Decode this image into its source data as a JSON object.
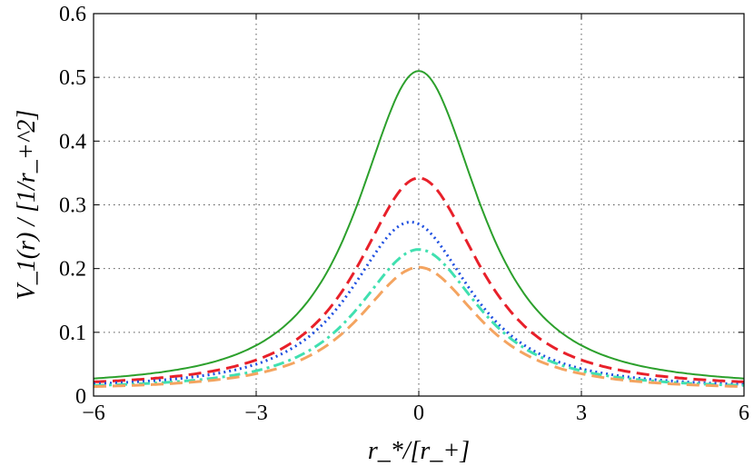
{
  "chart_data": {
    "type": "line",
    "title": "",
    "xlabel": "r_*/[r_+]",
    "ylabel": "V_1(r) / [1/r_+^2]",
    "xlim": [
      -6,
      6
    ],
    "ylim": [
      0,
      0.6
    ],
    "xticks": [
      -6,
      -3,
      0,
      3,
      6
    ],
    "xtick_labels": [
      "−6",
      "−3",
      "0",
      "3",
      "6"
    ],
    "yticks": [
      0,
      0.1,
      0.2,
      0.3,
      0.4,
      0.5,
      0.6
    ],
    "ytick_labels": [
      "0",
      "0.1",
      "0.2",
      "0.3",
      "0.4",
      "0.5",
      "0.6"
    ],
    "grid": true,
    "legend": "none",
    "series": [
      {
        "name": "solid",
        "style": "solid",
        "color": "#2ca02c",
        "peak_x": 0.0,
        "peak": 0.51,
        "tail": 0.027
      },
      {
        "name": "dashed",
        "style": "dashed",
        "color": "#e8202a",
        "peak_x": 0.0,
        "peak": 0.342,
        "tail": 0.025
      },
      {
        "name": "dotted",
        "style": "dotted",
        "color": "#2050e0",
        "peak_x": -0.15,
        "peak": 0.273,
        "tail": 0.022
      },
      {
        "name": "dash-dot",
        "style": "dashdot",
        "color": "#40e0b0",
        "peak_x": 0.0,
        "peak": 0.23,
        "tail": 0.02
      },
      {
        "name": "dashed-orange",
        "style": "dashed",
        "color": "#f4a460",
        "peak_x": 0.0,
        "peak": 0.202,
        "tail": 0.018
      }
    ]
  }
}
